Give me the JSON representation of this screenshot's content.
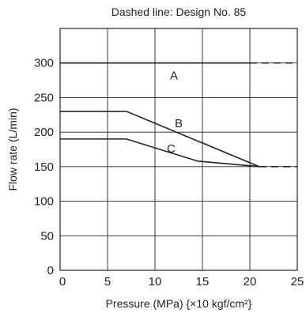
{
  "chart_data": {
    "type": "line",
    "title": "Dashed line: Design No. 85",
    "xlabel": "Pressure (MPa) {×10 kgf/cm²}",
    "ylabel": "Flow rate (L/min)",
    "xlim": [
      0,
      25
    ],
    "ylim": [
      0,
      350
    ],
    "x_ticks": [
      0,
      5,
      10,
      15,
      20,
      25
    ],
    "y_ticks": [
      0,
      50,
      100,
      150,
      200,
      250,
      300
    ],
    "x_tick_labels": [
      "0",
      "5",
      "10",
      "15",
      "20",
      "25"
    ],
    "y_tick_labels": [
      "0",
      "50",
      "100",
      "150",
      "200",
      "250",
      "300"
    ],
    "grid": true,
    "series": [
      {
        "name": "A",
        "points": [
          [
            0,
            300
          ],
          [
            20,
            300
          ]
        ]
      },
      {
        "name": "B",
        "points": [
          [
            0,
            230
          ],
          [
            7,
            230
          ],
          [
            21,
            150
          ]
        ]
      },
      {
        "name": "C",
        "points": [
          [
            0,
            190
          ],
          [
            7,
            190
          ],
          [
            14.5,
            158
          ],
          [
            21,
            150
          ]
        ]
      }
    ],
    "dashed_extensions": [
      {
        "points": [
          [
            20,
            300
          ],
          [
            25,
            300
          ]
        ]
      },
      {
        "points": [
          [
            21,
            150
          ],
          [
            25,
            150
          ]
        ]
      }
    ],
    "curve_labels": [
      {
        "text": "A",
        "x": 12,
        "y": 282
      },
      {
        "text": "B",
        "x": 12.5,
        "y": 213
      },
      {
        "text": "C",
        "x": 11.7,
        "y": 176
      }
    ],
    "colors": {
      "line": "#222222",
      "grid": "#222222",
      "background": "#ffffff"
    }
  }
}
